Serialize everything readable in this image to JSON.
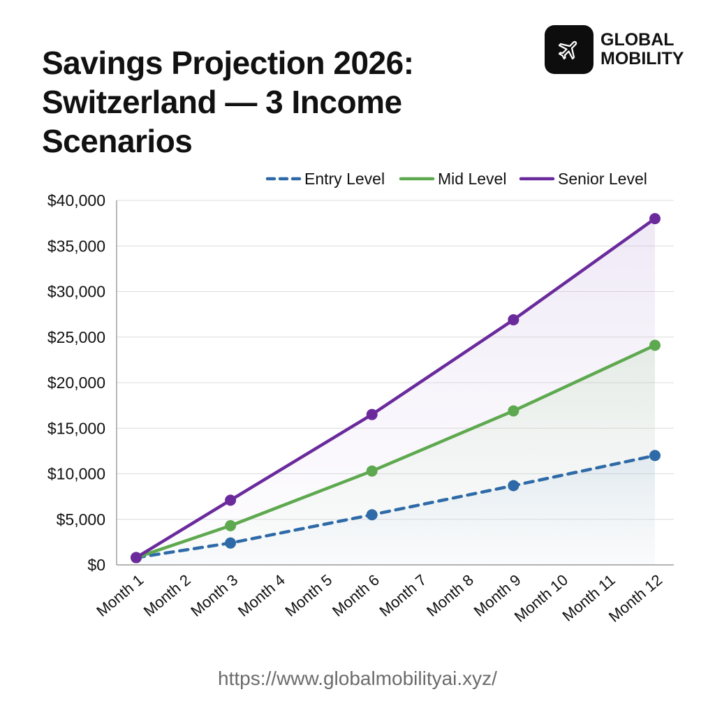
{
  "header": {
    "title_line1": "Savings Projection 2026:",
    "title_line2": "Switzerland — 3 Income Scenarios"
  },
  "brand": {
    "line1": "GLOBAL",
    "line2": "MOBILITY",
    "icon": "airplane-icon"
  },
  "footer": {
    "url": "https://www.globalmobilityai.xyz/"
  },
  "chart_data": {
    "type": "line",
    "title": "Savings Projection 2026: Switzerland — 3 Income Scenarios",
    "xlabel": "",
    "ylabel": "",
    "categories": [
      "Month 1",
      "Month 2",
      "Month 3",
      "Month 4",
      "Month 5",
      "Month 6",
      "Month 7",
      "Month 8",
      "Month 9",
      "Month 10",
      "Month 11",
      "Month 12"
    ],
    "yticks": [
      "$0",
      "$5,000",
      "$10,000",
      "$15,000",
      "$20,000",
      "$25,000",
      "$30,000",
      "$35,000",
      "$40,000"
    ],
    "ylim": [
      0,
      40000
    ],
    "grid": true,
    "legend_position": "top-right",
    "series": [
      {
        "name": "Entry Level",
        "color": "#2e6aa7",
        "dash": true,
        "points": [
          {
            "month": 1,
            "value": 800
          },
          {
            "month": 3,
            "value": 2400
          },
          {
            "month": 6,
            "value": 5500
          },
          {
            "month": 9,
            "value": 8700
          },
          {
            "month": 12,
            "value": 12000
          }
        ]
      },
      {
        "name": "Mid Level",
        "color": "#5ea94f",
        "dash": false,
        "points": [
          {
            "month": 1,
            "value": 800
          },
          {
            "month": 3,
            "value": 4300
          },
          {
            "month": 6,
            "value": 10300
          },
          {
            "month": 9,
            "value": 16900
          },
          {
            "month": 12,
            "value": 24100
          }
        ]
      },
      {
        "name": "Senior Level",
        "color": "#6a2a9c",
        "dash": false,
        "points": [
          {
            "month": 1,
            "value": 800
          },
          {
            "month": 3,
            "value": 7100
          },
          {
            "month": 6,
            "value": 16500
          },
          {
            "month": 9,
            "value": 26900
          },
          {
            "month": 12,
            "value": 38000
          }
        ]
      }
    ]
  }
}
